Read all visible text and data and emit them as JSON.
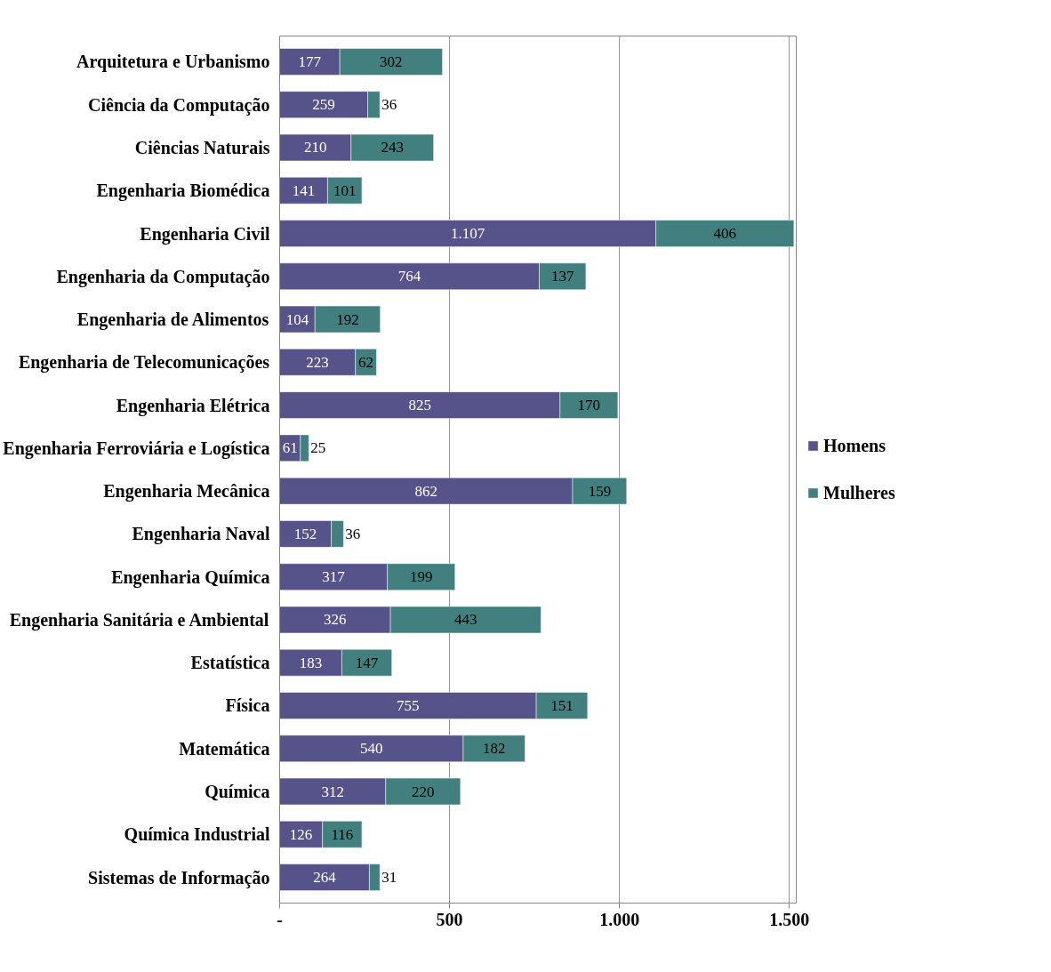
{
  "chart_data": {
    "type": "bar",
    "orientation": "horizontal",
    "stacked": true,
    "data_labels": true,
    "grid": "x",
    "legend": "right",
    "categories": [
      "Arquitetura e Urbanismo",
      "Ciência da Computação",
      "Ciências Naturais",
      "Engenharia Biomédica",
      "Engenharia Civil",
      "Engenharia da Computação",
      "Engenharia de Alimentos",
      "Engenharia de Telecomunicações",
      "Engenharia Elétrica",
      "Engenharia Ferroviária e Logística",
      "Engenharia Mecânica",
      "Engenharia Naval",
      "Engenharia Química",
      "Engenharia Sanitária e Ambiental",
      "Estatística",
      "Física",
      "Matemática",
      "Química",
      "Química Industrial",
      "Sistemas de Informação"
    ],
    "series": [
      {
        "name": "Homens",
        "color": "#55538a",
        "values": [
          177,
          259,
          210,
          141,
          1107,
          764,
          104,
          223,
          825,
          61,
          862,
          152,
          317,
          326,
          183,
          755,
          540,
          312,
          126,
          264
        ],
        "value_labels": [
          "177",
          "259",
          "210",
          "141",
          "1.107",
          "764",
          "104",
          "223",
          "825",
          "61",
          "862",
          "152",
          "317",
          "326",
          "183",
          "755",
          "540",
          "312",
          "126",
          "264"
        ]
      },
      {
        "name": "Mulheres",
        "color": "#41807f",
        "values": [
          302,
          36,
          243,
          101,
          406,
          137,
          192,
          62,
          170,
          25,
          159,
          36,
          199,
          443,
          147,
          151,
          182,
          220,
          116,
          31
        ]
      }
    ],
    "xlim": [
      0,
      1520
    ],
    "xticks": [
      {
        "value": 0,
        "label": "-"
      },
      500,
      {
        "value": 1000,
        "label": "1.000"
      },
      {
        "value": 1500,
        "label": "1.500"
      }
    ]
  }
}
